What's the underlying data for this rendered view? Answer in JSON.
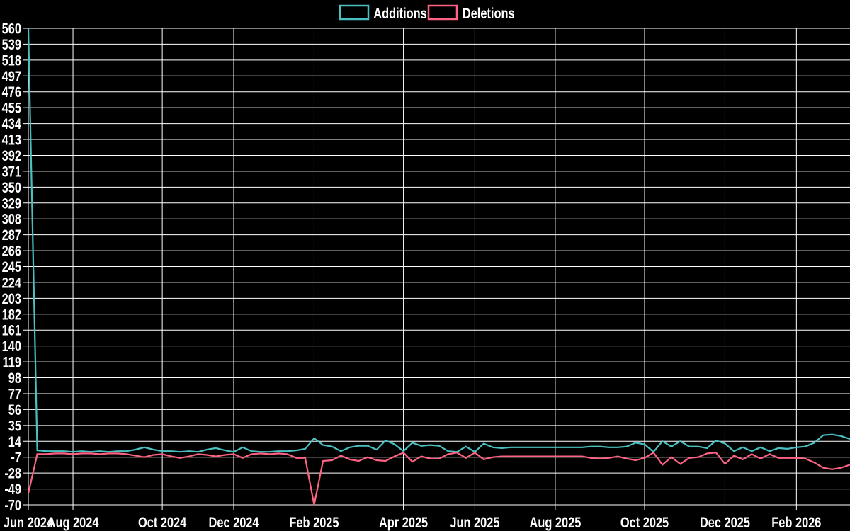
{
  "colors": {
    "background": "#000000",
    "grid": "#ffffff",
    "text": "#ffffff",
    "additions": "#4bc0c0",
    "deletions": "#ff6384"
  },
  "legend": {
    "items": [
      {
        "label": "Additions",
        "color": "#4bc0c0"
      },
      {
        "label": "Deletions",
        "color": "#ff6384"
      }
    ]
  },
  "chart_data": {
    "type": "line",
    "title": "",
    "xlabel": "",
    "ylabel": "",
    "grid": true,
    "legend_position": "top-center",
    "ylim": [
      -70,
      560
    ],
    "y_ticks": [
      560,
      539,
      518,
      497,
      476,
      455,
      434,
      413,
      392,
      371,
      350,
      329,
      308,
      287,
      266,
      245,
      224,
      203,
      182,
      161,
      140,
      119,
      98,
      77,
      56,
      35,
      14,
      -7,
      -28,
      -49,
      -70
    ],
    "x_unit": "week",
    "x_ticks": [
      {
        "week": 0,
        "label": "Jun 2024"
      },
      {
        "week": 5,
        "label": "Aug 2024"
      },
      {
        "week": 15,
        "label": "Oct 2024"
      },
      {
        "week": 23,
        "label": "Dec 2024"
      },
      {
        "week": 32,
        "label": "Feb 2025"
      },
      {
        "week": 42,
        "label": "Apr 2025"
      },
      {
        "week": 50,
        "label": "Jun 2025"
      },
      {
        "week": 59,
        "label": "Aug 2025"
      },
      {
        "week": 69,
        "label": "Oct 2025"
      },
      {
        "week": 78,
        "label": "Dec 2025"
      },
      {
        "week": 86,
        "label": "Feb 2026"
      }
    ],
    "series": [
      {
        "name": "Additions",
        "color": "#4bc0c0",
        "values": [
          560,
          2,
          1,
          1,
          1,
          0,
          1,
          0,
          1,
          0,
          1,
          1,
          3,
          6,
          3,
          1,
          1,
          0,
          1,
          0,
          3,
          5,
          2,
          0,
          6,
          1,
          0,
          0,
          1,
          1,
          2,
          4,
          18,
          9,
          7,
          1,
          6,
          8,
          8,
          3,
          15,
          10,
          1,
          12,
          8,
          9,
          8,
          1,
          0,
          7,
          0,
          11,
          6,
          5,
          6,
          6,
          6,
          6,
          6,
          6,
          6,
          6,
          6,
          7,
          7,
          6,
          6,
          7,
          12,
          10,
          0,
          14,
          7,
          14,
          7,
          7,
          5,
          15,
          11,
          1,
          6,
          1,
          6,
          1,
          5,
          4,
          6,
          7,
          12,
          22,
          23,
          21,
          17
        ]
      },
      {
        "name": "Deletions",
        "color": "#ff6384",
        "values": [
          -55,
          -3,
          -3,
          -2,
          -2,
          -3,
          -2,
          -2,
          -3,
          -2,
          -2,
          -3,
          -5,
          -7,
          -4,
          -3,
          -6,
          -8,
          -6,
          -3,
          -4,
          -6,
          -4,
          -3,
          -8,
          -3,
          -2,
          -3,
          -2,
          -3,
          -8,
          -8,
          -70,
          -12,
          -11,
          -5,
          -10,
          -12,
          -7,
          -11,
          -12,
          -6,
          -1,
          -13,
          -6,
          -9,
          -9,
          -3,
          -1,
          -8,
          -1,
          -10,
          -7,
          -6,
          -6,
          -6,
          -6,
          -6,
          -6,
          -6,
          -6,
          -6,
          -6,
          -8,
          -9,
          -8,
          -6,
          -9,
          -11,
          -8,
          -1,
          -17,
          -7,
          -16,
          -8,
          -7,
          -2,
          -1,
          -16,
          -5,
          -10,
          -3,
          -9,
          -3,
          -8,
          -8,
          -8,
          -9,
          -14,
          -21,
          -23,
          -21,
          -17
        ]
      }
    ]
  }
}
